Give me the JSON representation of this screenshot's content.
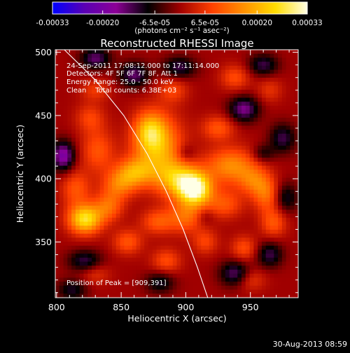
{
  "colorbar": {
    "ticks": [
      "-0.00033",
      "-0.00020",
      "-6.5e-05",
      "6.5e-05",
      "0.00020",
      "0.00033"
    ],
    "tick_values": [
      -0.00033,
      -0.0002,
      -6.5e-05,
      6.5e-05,
      0.0002,
      0.00033
    ],
    "range": [
      -0.00033,
      0.00033
    ],
    "unit_label": "(photons cm⁻² s⁻¹ asec⁻²)",
    "colormap": [
      "#0000ff",
      "#5a00b4",
      "#8c0096",
      "#000000",
      "#a00000",
      "#ff4000",
      "#ff9000",
      "#ffdd00",
      "#ffffe6"
    ]
  },
  "chart_data": {
    "type": "heatmap",
    "title": "Reconstructed RHESSI Image",
    "xlabel": "Heliocentric X (arcsec)",
    "ylabel": "Heliocentric Y (arcsec)",
    "xlim": [
      799,
      987
    ],
    "ylim": [
      306,
      502
    ],
    "xticks": [
      800,
      850,
      900,
      950
    ],
    "yticks": [
      350,
      400,
      450,
      500
    ],
    "annotations": [
      "24-Sep-2011 17:08:12.000 to 17:11:14.000",
      "Detectors: 4F 5F 6F 7F 8F, Att 1",
      "Energy Range: 25.0 - 50.0 keV",
      "Clean    Total counts: 6.38E+03"
    ],
    "peak_label": "Position of Peak = [909,391]",
    "peak": [
      909,
      391
    ],
    "limb": [
      [
        806,
        502
      ],
      [
        830,
        478
      ],
      [
        852,
        450
      ],
      [
        870,
        420
      ],
      [
        885,
        390
      ],
      [
        898,
        360
      ],
      [
        909,
        330
      ],
      [
        917,
        306
      ]
    ],
    "sources": [
      {
        "x": 907,
        "y": 392,
        "amp": 0.00033,
        "sx": 9,
        "sy": 9
      },
      {
        "x": 893,
        "y": 400,
        "amp": 0.00018,
        "sx": 11,
        "sy": 10
      },
      {
        "x": 878,
        "y": 425,
        "amp": 0.0002,
        "sx": 13,
        "sy": 18
      },
      {
        "x": 872,
        "y": 438,
        "amp": 0.00014,
        "sx": 8,
        "sy": 10
      },
      {
        "x": 860,
        "y": 405,
        "amp": 0.00016,
        "sx": 10,
        "sy": 8
      },
      {
        "x": 848,
        "y": 395,
        "amp": 0.00012,
        "sx": 9,
        "sy": 8
      },
      {
        "x": 822,
        "y": 368,
        "amp": 0.00026,
        "sx": 9,
        "sy": 8
      },
      {
        "x": 840,
        "y": 378,
        "amp": 0.00012,
        "sx": 8,
        "sy": 8
      },
      {
        "x": 815,
        "y": 392,
        "amp": 0.0001,
        "sx": 8,
        "sy": 10
      },
      {
        "x": 832,
        "y": 422,
        "amp": 0.0001,
        "sx": 9,
        "sy": 12
      },
      {
        "x": 826,
        "y": 448,
        "amp": 8e-05,
        "sx": 8,
        "sy": 8
      },
      {
        "x": 830,
        "y": 470,
        "amp": 7e-05,
        "sx": 8,
        "sy": 6
      },
      {
        "x": 935,
        "y": 410,
        "amp": 0.00016,
        "sx": 14,
        "sy": 10
      },
      {
        "x": 952,
        "y": 398,
        "amp": 0.0001,
        "sx": 8,
        "sy": 8
      },
      {
        "x": 962,
        "y": 388,
        "amp": 0.00012,
        "sx": 7,
        "sy": 10
      },
      {
        "x": 930,
        "y": 380,
        "amp": 0.0001,
        "sx": 10,
        "sy": 8
      },
      {
        "x": 925,
        "y": 440,
        "amp": 0.0001,
        "sx": 9,
        "sy": 7
      },
      {
        "x": 900,
        "y": 370,
        "amp": 0.00012,
        "sx": 10,
        "sy": 9
      },
      {
        "x": 878,
        "y": 366,
        "amp": 0.0001,
        "sx": 9,
        "sy": 7
      },
      {
        "x": 855,
        "y": 350,
        "amp": 0.0001,
        "sx": 8,
        "sy": 7
      },
      {
        "x": 885,
        "y": 335,
        "amp": 9e-05,
        "sx": 8,
        "sy": 7
      },
      {
        "x": 915,
        "y": 350,
        "amp": 8e-05,
        "sx": 7,
        "sy": 7
      },
      {
        "x": 945,
        "y": 345,
        "amp": 9e-05,
        "sx": 7,
        "sy": 7
      },
      {
        "x": 968,
        "y": 365,
        "amp": 0.0001,
        "sx": 7,
        "sy": 8
      },
      {
        "x": 890,
        "y": 470,
        "amp": 8e-05,
        "sx": 8,
        "sy": 7
      },
      {
        "x": 938,
        "y": 480,
        "amp": 9e-05,
        "sx": 8,
        "sy": 7
      },
      {
        "x": 965,
        "y": 470,
        "amp": 6e-05,
        "sx": 7,
        "sy": 7
      },
      {
        "x": 950,
        "y": 320,
        "amp": 7e-05,
        "sx": 8,
        "sy": 6
      },
      {
        "x": 830,
        "y": 325,
        "amp": 6e-05,
        "sx": 8,
        "sy": 6
      },
      {
        "x": 805,
        "y": 418,
        "amp": -0.0002,
        "sx": 6,
        "sy": 8
      },
      {
        "x": 830,
        "y": 495,
        "amp": -0.00014,
        "sx": 8,
        "sy": 6
      },
      {
        "x": 860,
        "y": 482,
        "amp": -0.00014,
        "sx": 8,
        "sy": 7
      },
      {
        "x": 895,
        "y": 488,
        "amp": -0.00012,
        "sx": 9,
        "sy": 6
      },
      {
        "x": 960,
        "y": 490,
        "amp": -0.00012,
        "sx": 8,
        "sy": 6
      },
      {
        "x": 945,
        "y": 455,
        "amp": -0.00016,
        "sx": 8,
        "sy": 7
      },
      {
        "x": 975,
        "y": 432,
        "amp": -0.00012,
        "sx": 7,
        "sy": 8
      },
      {
        "x": 978,
        "y": 385,
        "amp": -0.0001,
        "sx": 6,
        "sy": 8
      },
      {
        "x": 965,
        "y": 340,
        "amp": -0.00012,
        "sx": 7,
        "sy": 7
      },
      {
        "x": 938,
        "y": 325,
        "amp": -0.00014,
        "sx": 8,
        "sy": 7
      },
      {
        "x": 880,
        "y": 318,
        "amp": -0.0001,
        "sx": 8,
        "sy": 6
      },
      {
        "x": 822,
        "y": 335,
        "amp": -0.00012,
        "sx": 9,
        "sy": 6
      },
      {
        "x": 812,
        "y": 312,
        "amp": -0.0001,
        "sx": 8,
        "sy": 6
      },
      {
        "x": 900,
        "y": 420,
        "amp": -6e-05,
        "sx": 5,
        "sy": 5
      },
      {
        "x": 915,
        "y": 370,
        "amp": -5e-05,
        "sx": 5,
        "sy": 5
      },
      {
        "x": 960,
        "y": 420,
        "amp": -8e-05,
        "sx": 6,
        "sy": 5
      }
    ]
  },
  "footer": {
    "timestamp": "30-Aug-2013 08:59"
  }
}
